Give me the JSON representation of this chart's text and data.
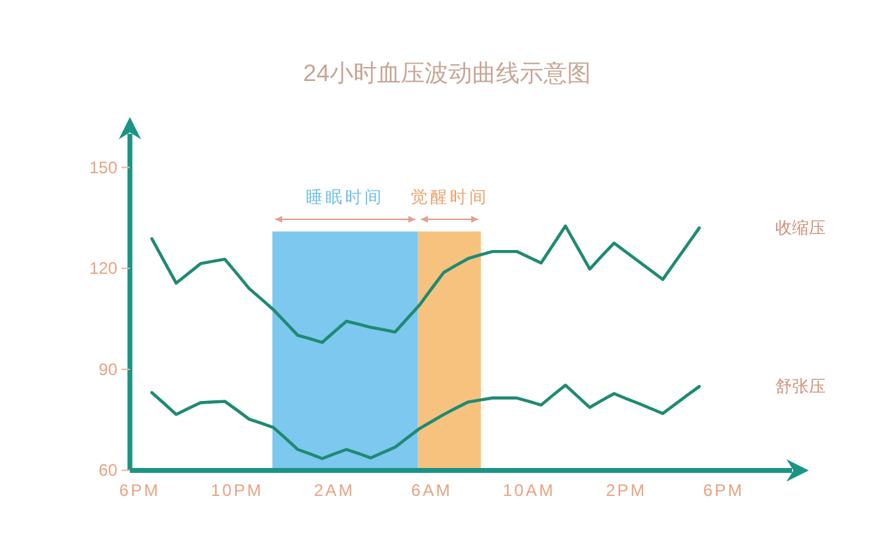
{
  "chart_data": {
    "type": "line",
    "title": "24小时血压波动曲线示意图",
    "categories": [
      "6PM",
      null,
      null,
      null,
      null,
      null,
      null,
      null,
      "10PM",
      null,
      null,
      null,
      null,
      null,
      null,
      null,
      "2AM",
      null,
      null,
      null,
      null,
      null,
      null,
      null,
      "6AM",
      null,
      null,
      null,
      null,
      null,
      null,
      null,
      "10AM",
      null,
      null,
      null,
      null,
      null,
      null,
      null,
      "2PM",
      null,
      null,
      null,
      null,
      null,
      null,
      null,
      "6PM"
    ],
    "ylim": [
      60,
      160
    ],
    "yticks": [
      60,
      90,
      120,
      150
    ],
    "grid": false,
    "legend": false,
    "marker": "none",
    "line_style": "solid",
    "annotations": [
      "睡眠时间",
      "觉醒时间"
    ],
    "series": [
      {
        "name": "收缩压",
        "color": "#1f8a72",
        "values": [
          null,
          128.8,
          122.2,
          115.6,
          118.5,
          121.4,
          122.1,
          122.7,
          118.4,
          114,
          110.9,
          107.7,
          103.9,
          100.1,
          99.1,
          98,
          101.2,
          104.3,
          103.4,
          102.5,
          101.8,
          101.1,
          105.1,
          109.1,
          114,
          118.8,
          120.9,
          122.9,
          124,
          125,
          125,
          125,
          123.3,
          121.6,
          127.1,
          132.6,
          126.2,
          119.8,
          123.7,
          127.5,
          124.8,
          122.1,
          119.4,
          116.7,
          121.8,
          126.9,
          132,
          null,
          null
        ]
      },
      {
        "name": "舒张压",
        "color": "#1f8a72",
        "values": [
          null,
          83.1,
          79.9,
          76.6,
          78.4,
          80.1,
          80.3,
          80.5,
          77.9,
          75.2,
          74,
          72.7,
          69.5,
          66.2,
          64.9,
          63.5,
          64.9,
          66.2,
          65,
          63.7,
          65.3,
          66.9,
          69.7,
          72.4,
          74.5,
          76.6,
          78.5,
          80.3,
          80.9,
          81.5,
          81.5,
          81.5,
          80.5,
          79.4,
          82.4,
          85.3,
          82,
          78.7,
          80.8,
          82.8,
          81.3,
          79.9,
          78.4,
          76.9,
          79.6,
          82.3,
          84.9,
          null,
          null
        ]
      }
    ]
  }
}
